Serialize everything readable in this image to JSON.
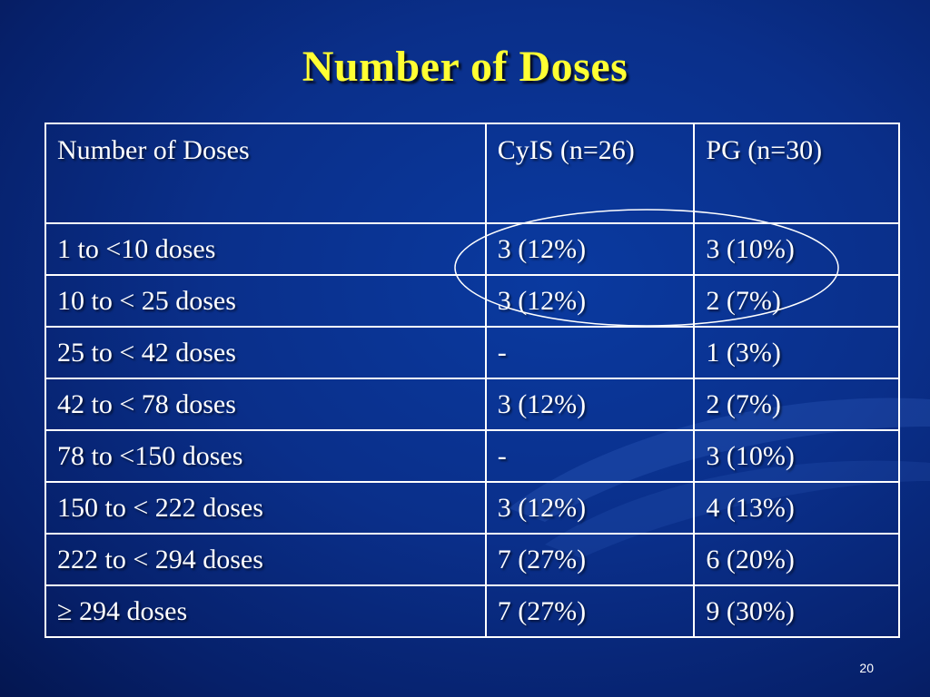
{
  "slide": {
    "title": "Number of Doses",
    "page_number": "20"
  },
  "table": {
    "headers": [
      "Number of Doses",
      "CyIS (n=26)",
      "PG (n=30)"
    ],
    "rows": [
      [
        "1 to <10 doses",
        "3 (12%)",
        "3 (10%)"
      ],
      [
        "10 to < 25 doses",
        "3 (12%)",
        "2 (7%)"
      ],
      [
        "25 to < 42 doses",
        "-",
        "1 (3%)"
      ],
      [
        "42 to < 78 doses",
        "3 (12%)",
        "2 (7%)"
      ],
      [
        "78 to <150 doses",
        "-",
        "3 (10%)"
      ],
      [
        "150 to < 222 doses",
        "3 (12%)",
        "4 (13%)"
      ],
      [
        "222 to < 294 doses",
        "7 (27%)",
        "6 (20%)"
      ],
      [
        "≥ 294 doses",
        "7 (27%)",
        "9 (30%)"
      ]
    ]
  },
  "colors": {
    "background": "#0a2f8a",
    "title": "#ffff33",
    "text": "#ffffff"
  }
}
